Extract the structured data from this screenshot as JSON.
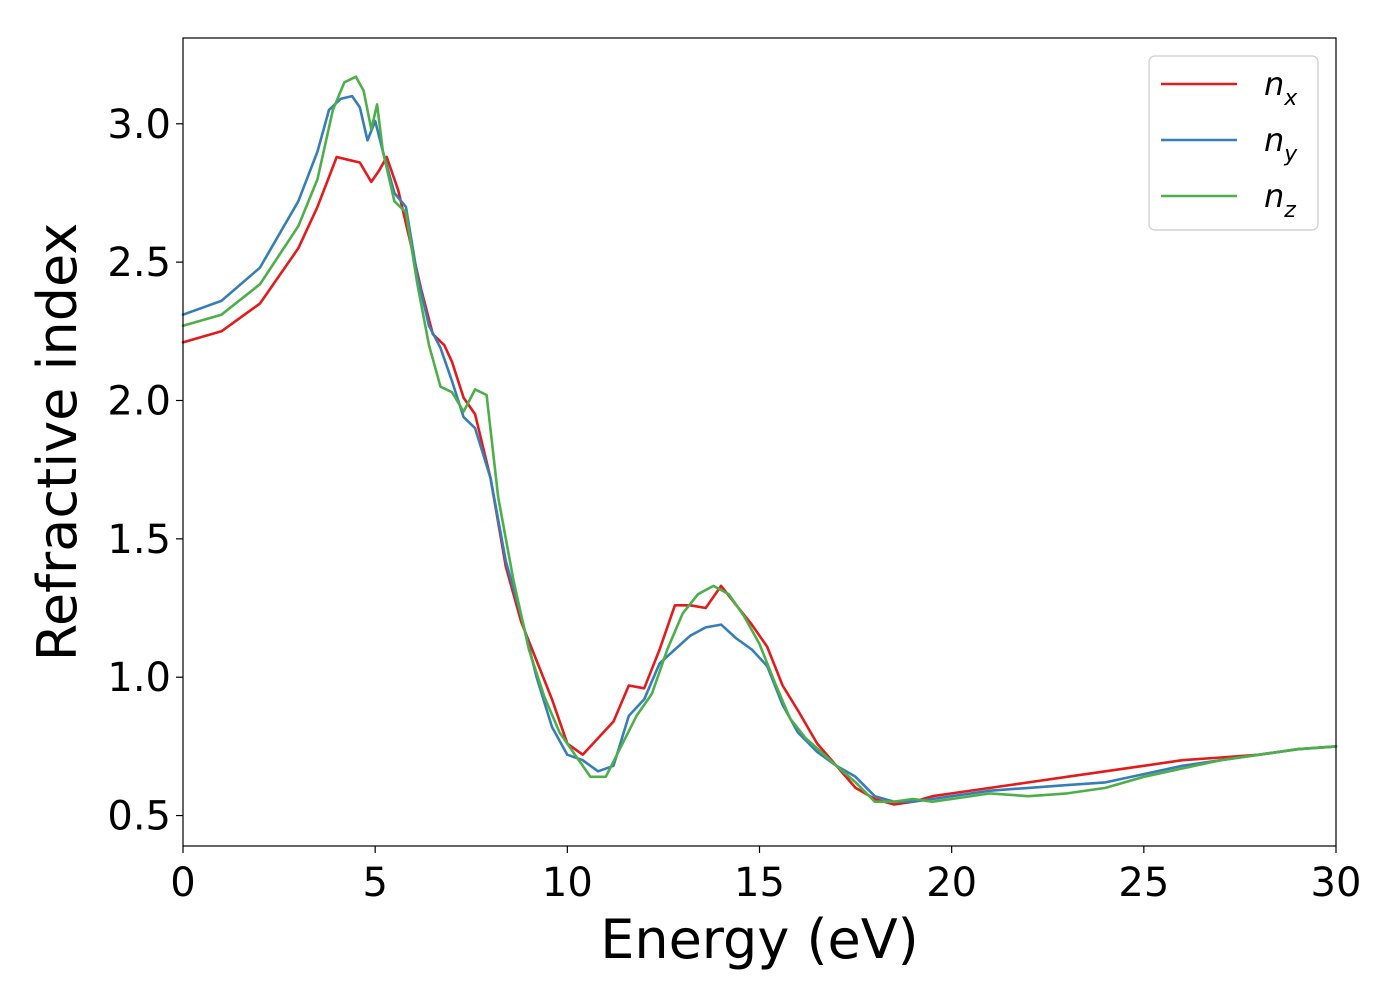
{
  "chart_data": {
    "type": "line",
    "xlabel": "Energy (eV)",
    "ylabel": "Refractive index",
    "xlim": [
      0,
      30
    ],
    "ylim": [
      0.39,
      3.31
    ],
    "xticks": [
      0,
      5,
      10,
      15,
      20,
      25,
      30
    ],
    "yticks": [
      0.5,
      1.0,
      1.5,
      2.0,
      2.5,
      3.0
    ],
    "xtick_labels": [
      "0",
      "5",
      "10",
      "15",
      "20",
      "25",
      "30"
    ],
    "ytick_labels": [
      "0.5",
      "1.0",
      "1.5",
      "2.0",
      "2.5",
      "3.0"
    ],
    "grid": false,
    "legend_position": "top-right",
    "series": [
      {
        "name": "n_x",
        "label_base": "n",
        "label_sub": "x",
        "color": "#e41a1c",
        "x": [
          0,
          1,
          2,
          3,
          3.5,
          4,
          4.3,
          4.6,
          4.9,
          5.1,
          5.3,
          5.6,
          5.9,
          6.2,
          6.5,
          6.8,
          7.0,
          7.3,
          7.6,
          8.0,
          8.4,
          8.8,
          9.2,
          9.6,
          10.0,
          10.4,
          10.8,
          11.2,
          11.6,
          12.0,
          12.4,
          12.8,
          13.2,
          13.6,
          14.0,
          14.4,
          14.8,
          15.2,
          15.6,
          16.0,
          16.5,
          17.0,
          17.5,
          18.0,
          18.5,
          19.0,
          19.5,
          20,
          21,
          22,
          23,
          24,
          25,
          26,
          27,
          28,
          29,
          30
        ],
        "y": [
          2.21,
          2.25,
          2.35,
          2.55,
          2.7,
          2.88,
          2.87,
          2.86,
          2.79,
          2.83,
          2.88,
          2.76,
          2.58,
          2.4,
          2.24,
          2.2,
          2.14,
          2.01,
          1.95,
          1.72,
          1.4,
          1.2,
          1.06,
          0.92,
          0.76,
          0.72,
          0.78,
          0.84,
          0.97,
          0.96,
          1.1,
          1.26,
          1.26,
          1.25,
          1.33,
          1.26,
          1.19,
          1.11,
          0.97,
          0.88,
          0.76,
          0.68,
          0.6,
          0.56,
          0.54,
          0.55,
          0.57,
          0.58,
          0.6,
          0.62,
          0.64,
          0.66,
          0.68,
          0.7,
          0.71,
          0.72,
          0.74,
          0.75
        ]
      },
      {
        "name": "n_y",
        "label_base": "n",
        "label_sub": "y",
        "color": "#377eb8",
        "x": [
          0,
          1,
          2,
          3,
          3.5,
          3.8,
          4.1,
          4.4,
          4.6,
          4.8,
          5.0,
          5.2,
          5.5,
          5.8,
          6.1,
          6.4,
          6.7,
          7.0,
          7.3,
          7.6,
          8.0,
          8.4,
          8.8,
          9.2,
          9.6,
          10.0,
          10.4,
          10.8,
          11.2,
          11.6,
          12.0,
          12.4,
          12.8,
          13.2,
          13.6,
          14.0,
          14.4,
          14.8,
          15.2,
          15.6,
          16.0,
          16.5,
          17.0,
          17.5,
          18.0,
          18.5,
          19.0,
          19.5,
          20,
          21,
          22,
          23,
          24,
          25,
          26,
          27,
          28,
          29,
          30
        ],
        "y": [
          2.31,
          2.36,
          2.48,
          2.72,
          2.9,
          3.05,
          3.09,
          3.1,
          3.06,
          2.94,
          3.01,
          2.9,
          2.75,
          2.7,
          2.45,
          2.27,
          2.19,
          2.07,
          1.94,
          1.9,
          1.72,
          1.42,
          1.22,
          1.0,
          0.82,
          0.72,
          0.7,
          0.66,
          0.68,
          0.86,
          0.92,
          1.05,
          1.1,
          1.15,
          1.18,
          1.19,
          1.14,
          1.1,
          1.04,
          0.9,
          0.8,
          0.73,
          0.68,
          0.64,
          0.57,
          0.55,
          0.55,
          0.56,
          0.57,
          0.59,
          0.6,
          0.61,
          0.62,
          0.65,
          0.68,
          0.7,
          0.72,
          0.74,
          0.75
        ]
      },
      {
        "name": "n_z",
        "label_base": "n",
        "label_sub": "z",
        "color": "#4daf4a",
        "x": [
          0,
          1,
          2,
          3,
          3.5,
          3.9,
          4.2,
          4.5,
          4.7,
          4.9,
          5.05,
          5.2,
          5.5,
          5.8,
          6.1,
          6.4,
          6.7,
          7.0,
          7.3,
          7.6,
          7.9,
          8.2,
          8.6,
          9.0,
          9.4,
          9.8,
          10.2,
          10.6,
          11.0,
          11.4,
          11.8,
          12.2,
          12.6,
          13.0,
          13.4,
          13.8,
          14.2,
          14.6,
          15.0,
          15.4,
          15.8,
          16.2,
          16.6,
          17.0,
          17.5,
          18.0,
          18.5,
          19.0,
          19.5,
          20,
          21,
          22,
          23,
          24,
          25,
          26,
          27,
          28,
          29,
          30
        ],
        "y": [
          2.27,
          2.31,
          2.42,
          2.63,
          2.8,
          3.05,
          3.15,
          3.17,
          3.12,
          2.98,
          3.07,
          2.9,
          2.72,
          2.68,
          2.42,
          2.2,
          2.05,
          2.03,
          1.96,
          2.04,
          2.02,
          1.65,
          1.35,
          1.1,
          0.93,
          0.8,
          0.72,
          0.64,
          0.64,
          0.75,
          0.86,
          0.94,
          1.1,
          1.23,
          1.3,
          1.33,
          1.3,
          1.22,
          1.12,
          0.98,
          0.85,
          0.78,
          0.73,
          0.68,
          0.62,
          0.55,
          0.55,
          0.56,
          0.55,
          0.56,
          0.58,
          0.57,
          0.58,
          0.6,
          0.64,
          0.67,
          0.7,
          0.72,
          0.74,
          0.75
        ]
      }
    ]
  }
}
